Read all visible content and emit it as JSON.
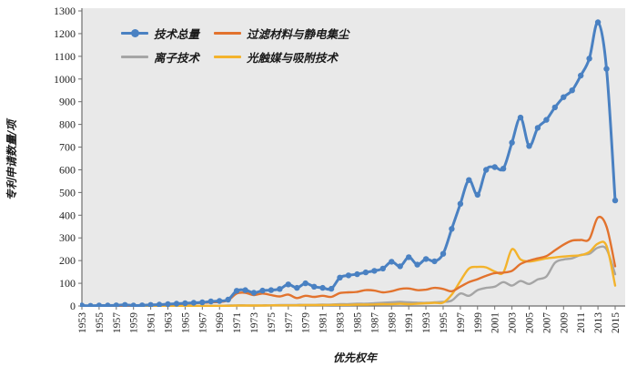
{
  "chart_data": {
    "type": "line",
    "title": "",
    "xlabel": "优先权年",
    "ylabel": "专利申请数量/项",
    "plot_bg": "#e9e9e9",
    "axis_color": "#6e6e6e",
    "grid": false,
    "legend_position": "inside-top-left",
    "ylim": [
      0,
      1300
    ],
    "y_ticks": [
      0,
      100,
      200,
      300,
      400,
      500,
      600,
      700,
      800,
      900,
      1000,
      1100,
      1200,
      1300
    ],
    "x_tick_labels": [
      "1953",
      "1955",
      "1957",
      "1959",
      "1961",
      "1963",
      "1965",
      "1967",
      "1969",
      "1971",
      "1973",
      "1975",
      "1977",
      "1979",
      "1981",
      "1983",
      "1985",
      "1987",
      "1989",
      "1991",
      "1993",
      "1995",
      "1997",
      "1999",
      "2001",
      "2003",
      "2005",
      "2007",
      "2009",
      "2011",
      "2013",
      "2015"
    ],
    "x": [
      1953,
      1954,
      1955,
      1956,
      1957,
      1958,
      1959,
      1960,
      1961,
      1962,
      1963,
      1964,
      1965,
      1966,
      1967,
      1968,
      1969,
      1970,
      1971,
      1972,
      1973,
      1974,
      1975,
      1976,
      1977,
      1978,
      1979,
      1980,
      1981,
      1982,
      1983,
      1984,
      1985,
      1986,
      1987,
      1988,
      1989,
      1990,
      1991,
      1992,
      1993,
      1994,
      1995,
      1996,
      1997,
      1998,
      1999,
      2000,
      2001,
      2002,
      2003,
      2004,
      2005,
      2006,
      2007,
      2008,
      2009,
      2010,
      2011,
      2012,
      2013,
      2014,
      2015
    ],
    "series": [
      {
        "name": "技术总量",
        "color": "#4a81c2",
        "marker": "circle",
        "values": [
          2,
          1,
          2,
          2,
          3,
          5,
          2,
          3,
          5,
          6,
          8,
          10,
          12,
          14,
          16,
          20,
          22,
          28,
          67,
          70,
          58,
          68,
          70,
          75,
          95,
          80,
          100,
          85,
          80,
          76,
          125,
          135,
          140,
          148,
          155,
          165,
          195,
          175,
          215,
          182,
          207,
          197,
          230,
          340,
          450,
          555,
          490,
          600,
          612,
          605,
          720,
          830,
          705,
          785,
          820,
          875,
          920,
          950,
          1015,
          1090,
          1250,
          1045,
          465
        ]
      },
      {
        "name": "过滤材料与静电集尘",
        "color": "#e2732e",
        "marker": "none",
        "values": [
          0,
          0,
          0,
          0,
          0,
          0,
          2,
          3,
          4,
          5,
          6,
          8,
          10,
          12,
          14,
          16,
          18,
          25,
          55,
          58,
          48,
          55,
          48,
          42,
          50,
          35,
          45,
          40,
          45,
          40,
          57,
          60,
          62,
          70,
          68,
          60,
          65,
          75,
          77,
          70,
          72,
          80,
          75,
          65,
          85,
          105,
          118,
          133,
          145,
          147,
          155,
          185,
          200,
          210,
          220,
          245,
          270,
          288,
          291,
          295,
          390,
          350,
          175
        ]
      },
      {
        "name": "离子技术",
        "color": "#a5a5a5",
        "marker": "none",
        "values": [
          0,
          0,
          0,
          0,
          0,
          0,
          0,
          0,
          0,
          0,
          0,
          0,
          0,
          0,
          0,
          1,
          1,
          2,
          3,
          3,
          2,
          3,
          3,
          4,
          4,
          5,
          5,
          5,
          6,
          6,
          8,
          8,
          10,
          10,
          12,
          14,
          16,
          18,
          16,
          15,
          14,
          16,
          18,
          24,
          55,
          45,
          70,
          80,
          85,
          105,
          90,
          110,
          97,
          117,
          130,
          190,
          205,
          210,
          225,
          230,
          257,
          250,
          140
        ]
      },
      {
        "name": "光触媒与吸附技术",
        "color": "#f3b32c",
        "marker": "none",
        "values": [
          0,
          0,
          0,
          0,
          0,
          0,
          0,
          0,
          0,
          0,
          0,
          0,
          0,
          0,
          0,
          0,
          1,
          1,
          2,
          2,
          2,
          2,
          3,
          3,
          3,
          3,
          4,
          4,
          4,
          5,
          5,
          5,
          6,
          6,
          7,
          8,
          8,
          10,
          8,
          10,
          12,
          14,
          15,
          50,
          110,
          165,
          172,
          170,
          152,
          148,
          250,
          205,
          196,
          202,
          210,
          214,
          218,
          221,
          224,
          238,
          275,
          265,
          90
        ]
      }
    ]
  }
}
